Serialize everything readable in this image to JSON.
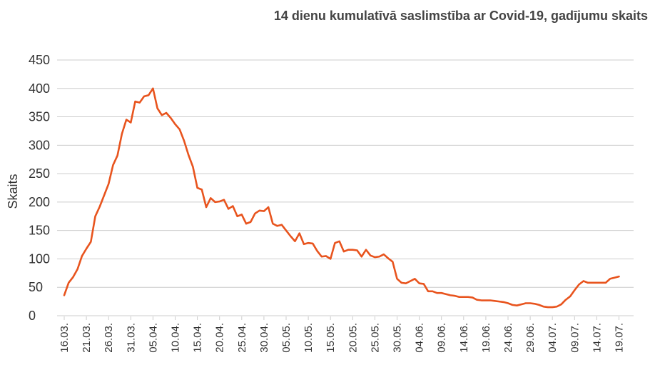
{
  "chart_data": {
    "type": "line",
    "title": "14 dienu kumulatīvā saslimstība ar Covid-19, gadījumu skaits",
    "xlabel": "",
    "ylabel": "Skaits",
    "ylim": [
      0,
      450
    ],
    "yticks": [
      0,
      50,
      100,
      150,
      200,
      250,
      300,
      350,
      400,
      450
    ],
    "grid": true,
    "legend": "none",
    "x_tick_labels": [
      "16.03.",
      "21.03.",
      "26.03.",
      "31.03.",
      "05.04.",
      "10.04.",
      "15.04.",
      "20.04.",
      "25.04.",
      "30.04.",
      "05.05.",
      "10.05.",
      "15.05.",
      "20.05.",
      "25.05.",
      "30.05.",
      "04.06.",
      "09.06.",
      "14.06.",
      "19.06.",
      "24.06.",
      "29.06.",
      "04.07.",
      "09.07.",
      "14.07.",
      "19.07."
    ],
    "x_start": "16.03.",
    "x_step_days": 1,
    "series": [
      {
        "color": "#e8541e",
        "values": [
          36,
          58,
          68,
          82,
          105,
          118,
          130,
          175,
          192,
          212,
          232,
          265,
          282,
          320,
          345,
          340,
          377,
          375,
          386,
          388,
          400,
          365,
          353,
          357,
          348,
          337,
          328,
          308,
          283,
          262,
          225,
          222,
          191,
          207,
          200,
          201,
          204,
          188,
          193,
          175,
          178,
          162,
          165,
          180,
          185,
          184,
          191,
          162,
          158,
          160,
          150,
          140,
          131,
          145,
          126,
          128,
          127,
          114,
          104,
          105,
          100,
          128,
          131,
          113,
          116,
          116,
          115,
          104,
          116,
          106,
          103,
          104,
          108,
          101,
          95,
          65,
          58,
          57,
          61,
          65,
          57,
          56,
          43,
          43,
          40,
          40,
          38,
          36,
          35,
          33,
          33,
          33,
          32,
          28,
          27,
          27,
          27,
          26,
          25,
          24,
          22,
          19,
          18,
          20,
          22,
          22,
          21,
          19,
          16,
          15,
          15,
          16,
          20,
          28,
          34,
          45,
          55,
          61,
          58,
          58,
          58,
          58,
          58,
          65,
          67,
          69
        ]
      }
    ]
  }
}
